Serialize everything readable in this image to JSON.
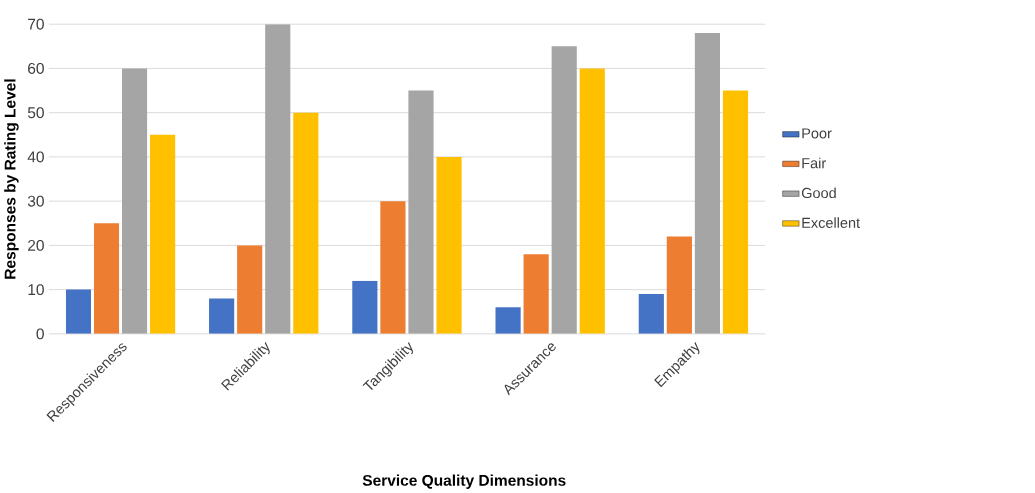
{
  "chart_data": {
    "type": "bar",
    "xlabel": "Service Quality Dimensions",
    "ylabel": "Responses by Rating Level",
    "categories": [
      "Responsiveness",
      "Reliability",
      "Tangibility",
      "Assurance",
      "Empathy"
    ],
    "series": [
      {
        "name": "Poor",
        "color": "#4472c4",
        "values": [
          10,
          8,
          12,
          6,
          9
        ]
      },
      {
        "name": "Fair",
        "color": "#ed7d31",
        "values": [
          25,
          20,
          30,
          18,
          22
        ]
      },
      {
        "name": "Good",
        "color": "#a5a5a5",
        "values": [
          60,
          70,
          55,
          65,
          68
        ]
      },
      {
        "name": "Excellent",
        "color": "#ffc000",
        "values": [
          45,
          50,
          40,
          60,
          55
        ]
      }
    ],
    "ylim": [
      0,
      70
    ],
    "yticks": [
      0,
      10,
      20,
      30,
      40,
      50,
      60,
      70
    ],
    "grid": "y",
    "legend": "right"
  }
}
